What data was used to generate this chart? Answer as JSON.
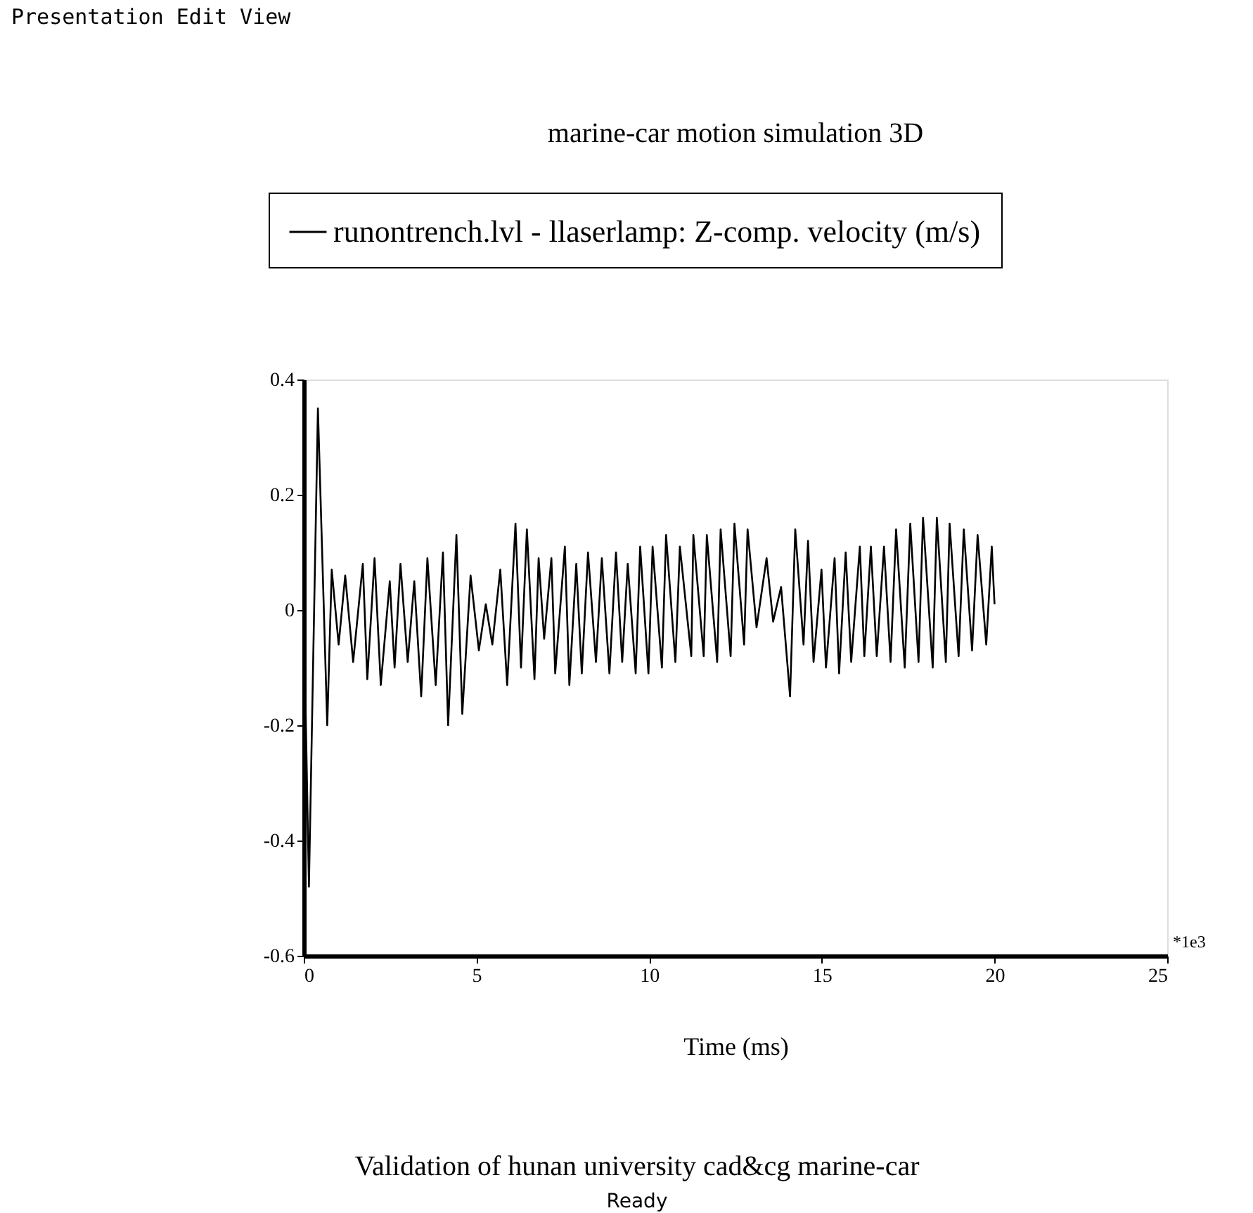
{
  "chart_data": {
    "type": "line",
    "title": "marine-car motion simulation 3D",
    "xlabel": "Time (ms)",
    "annotations": [
      "Presentation  Edit  View",
      "*1e3",
      "Validation of hunan university cad&cg marine-car",
      "Ready"
    ],
    "xlim": [
      0,
      25
    ],
    "ylim": [
      -0.6,
      0.4
    ],
    "xticks": [
      0,
      5,
      10,
      15,
      20,
      25
    ],
    "yticks": [
      -0.6,
      -0.4,
      -0.2,
      0,
      0.2,
      0.4
    ],
    "grid": false,
    "legend": "top",
    "series": [
      {
        "name": "runontrench.lvl - llaserlamp: Z-comp. velocity (m/s)",
        "color": "#000000",
        "x": [
          0,
          0.15,
          0.41,
          0.68,
          0.81,
          1.01,
          1.2,
          1.43,
          1.71,
          1.84,
          2.05,
          2.23,
          2.49,
          2.63,
          2.8,
          3.01,
          3.2,
          3.4,
          3.58,
          3.82,
          4.03,
          4.18,
          4.42,
          4.59,
          4.83,
          5.07,
          5.27,
          5.46,
          5.69,
          5.89,
          6.13,
          6.29,
          6.46,
          6.68,
          6.8,
          6.96,
          7.17,
          7.28,
          7.56,
          7.69,
          7.89,
          8.05,
          8.23,
          8.46,
          8.63,
          8.85,
          9.04,
          9.22,
          9.38,
          9.61,
          9.74,
          9.98,
          10.1,
          10.37,
          10.49,
          10.76,
          10.89,
          11.22,
          11.28,
          11.58,
          11.67,
          11.97,
          12.07,
          12.36,
          12.47,
          12.75,
          12.85,
          13.11,
          13.4,
          13.59,
          13.82,
          14.08,
          14.23,
          14.47,
          14.6,
          14.76,
          14.99,
          15.12,
          15.37,
          15.5,
          15.69,
          15.85,
          16.1,
          16.23,
          16.42,
          16.59,
          16.8,
          16.99,
          17.15,
          17.4,
          17.56,
          17.8,
          17.93,
          18.21,
          18.33,
          18.59,
          18.7,
          18.96,
          19.11,
          19.35,
          19.51,
          19.76,
          19.92,
          20
        ],
        "values": [
          0,
          -0.48,
          0.35,
          -0.2,
          0.07,
          -0.06,
          0.06,
          -0.09,
          0.08,
          -0.12,
          0.09,
          -0.13,
          0.05,
          -0.1,
          0.08,
          -0.09,
          0.05,
          -0.15,
          0.09,
          -0.13,
          0.1,
          -0.2,
          0.13,
          -0.18,
          0.06,
          -0.07,
          0.01,
          -0.06,
          0.07,
          -0.13,
          0.15,
          -0.1,
          0.14,
          -0.12,
          0.09,
          -0.05,
          0.09,
          -0.11,
          0.11,
          -0.13,
          0.08,
          -0.11,
          0.1,
          -0.09,
          0.09,
          -0.11,
          0.1,
          -0.09,
          0.08,
          -0.11,
          0.11,
          -0.11,
          0.11,
          -0.1,
          0.13,
          -0.09,
          0.11,
          -0.08,
          0.13,
          -0.08,
          0.13,
          -0.09,
          0.14,
          -0.08,
          0.15,
          -0.06,
          0.14,
          -0.03,
          0.09,
          -0.02,
          0.04,
          -0.15,
          0.14,
          -0.06,
          0.12,
          -0.09,
          0.07,
          -0.1,
          0.09,
          -0.11,
          0.1,
          -0.09,
          0.11,
          -0.08,
          0.11,
          -0.08,
          0.11,
          -0.09,
          0.14,
          -0.1,
          0.15,
          -0.09,
          0.16,
          -0.1,
          0.16,
          -0.09,
          0.15,
          -0.08,
          0.14,
          -0.07,
          0.13,
          -0.06,
          0.11,
          0.01
        ]
      }
    ]
  }
}
